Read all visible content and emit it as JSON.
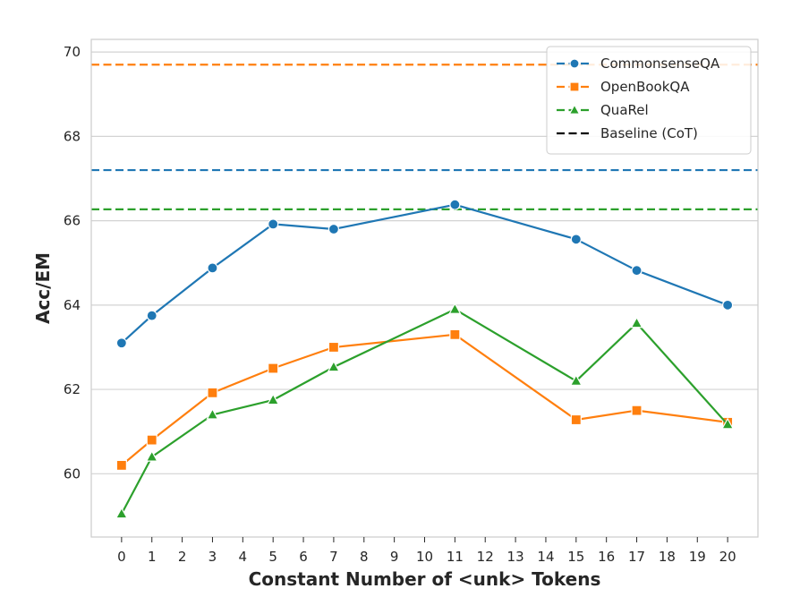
{
  "chart_data": {
    "type": "line",
    "title": "",
    "xlabel": "Constant Number of <unk> Tokens",
    "ylabel": "Acc/EM",
    "x_ticks": [
      0,
      1,
      2,
      3,
      4,
      5,
      6,
      7,
      8,
      9,
      10,
      11,
      12,
      13,
      14,
      15,
      16,
      17,
      18,
      19,
      20
    ],
    "y_ticks": [
      60,
      62,
      64,
      66,
      68,
      70
    ],
    "xlim": [
      -1,
      21
    ],
    "ylim": [
      58.5,
      70.3
    ],
    "grid": true,
    "legend_position": "top-right",
    "series": [
      {
        "name": "CommonsenseQA",
        "color": "#1f77b4",
        "marker": "circle",
        "x": [
          0,
          1,
          3,
          5,
          7,
          11,
          15,
          17,
          20
        ],
        "y": [
          63.1,
          63.75,
          64.88,
          65.92,
          65.8,
          66.38,
          65.56,
          64.82,
          64.0
        ],
        "baseline": 67.2
      },
      {
        "name": "OpenBookQA",
        "color": "#ff7f0e",
        "marker": "square",
        "x": [
          0,
          1,
          3,
          5,
          7,
          11,
          15,
          17,
          20
        ],
        "y": [
          60.2,
          60.8,
          61.92,
          62.5,
          63.0,
          63.3,
          61.28,
          61.5,
          61.22
        ],
        "baseline": 69.7
      },
      {
        "name": "QuaRel",
        "color": "#2ca02c",
        "marker": "triangle",
        "x": [
          0,
          1,
          3,
          5,
          7,
          11,
          15,
          17,
          20
        ],
        "y": [
          59.05,
          60.4,
          61.4,
          61.75,
          62.53,
          63.9,
          62.2,
          63.57,
          61.17
        ],
        "baseline": 66.27
      }
    ],
    "baseline_legend": {
      "name": "Baseline (CoT)",
      "color": "#000000"
    }
  }
}
